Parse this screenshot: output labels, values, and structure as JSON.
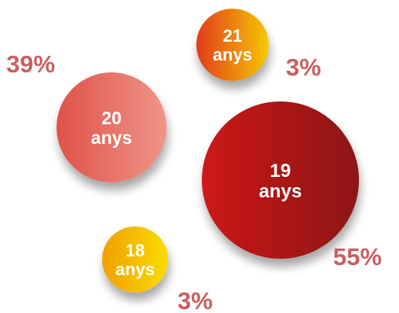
{
  "chart_data": {
    "type": "bubble",
    "series": [
      {
        "label_num": "20",
        "label_unit": "anys",
        "value": 39,
        "value_label": "39%",
        "color_a": "#e05248",
        "color_b": "#ee9589"
      },
      {
        "label_num": "21",
        "label_unit": "anys",
        "value": 3,
        "value_label": "3%",
        "color_a": "#e23c1c",
        "color_b": "#f6c700"
      },
      {
        "label_num": "19",
        "label_unit": "anys",
        "value": 55,
        "value_label": "55%",
        "color_a": "#cc1a1a",
        "color_b": "#8c1414"
      },
      {
        "label_num": "18",
        "label_unit": "anys",
        "value": 3,
        "value_label": "3%",
        "color_a": "#f0a000",
        "color_b": "#fadc00"
      }
    ]
  }
}
